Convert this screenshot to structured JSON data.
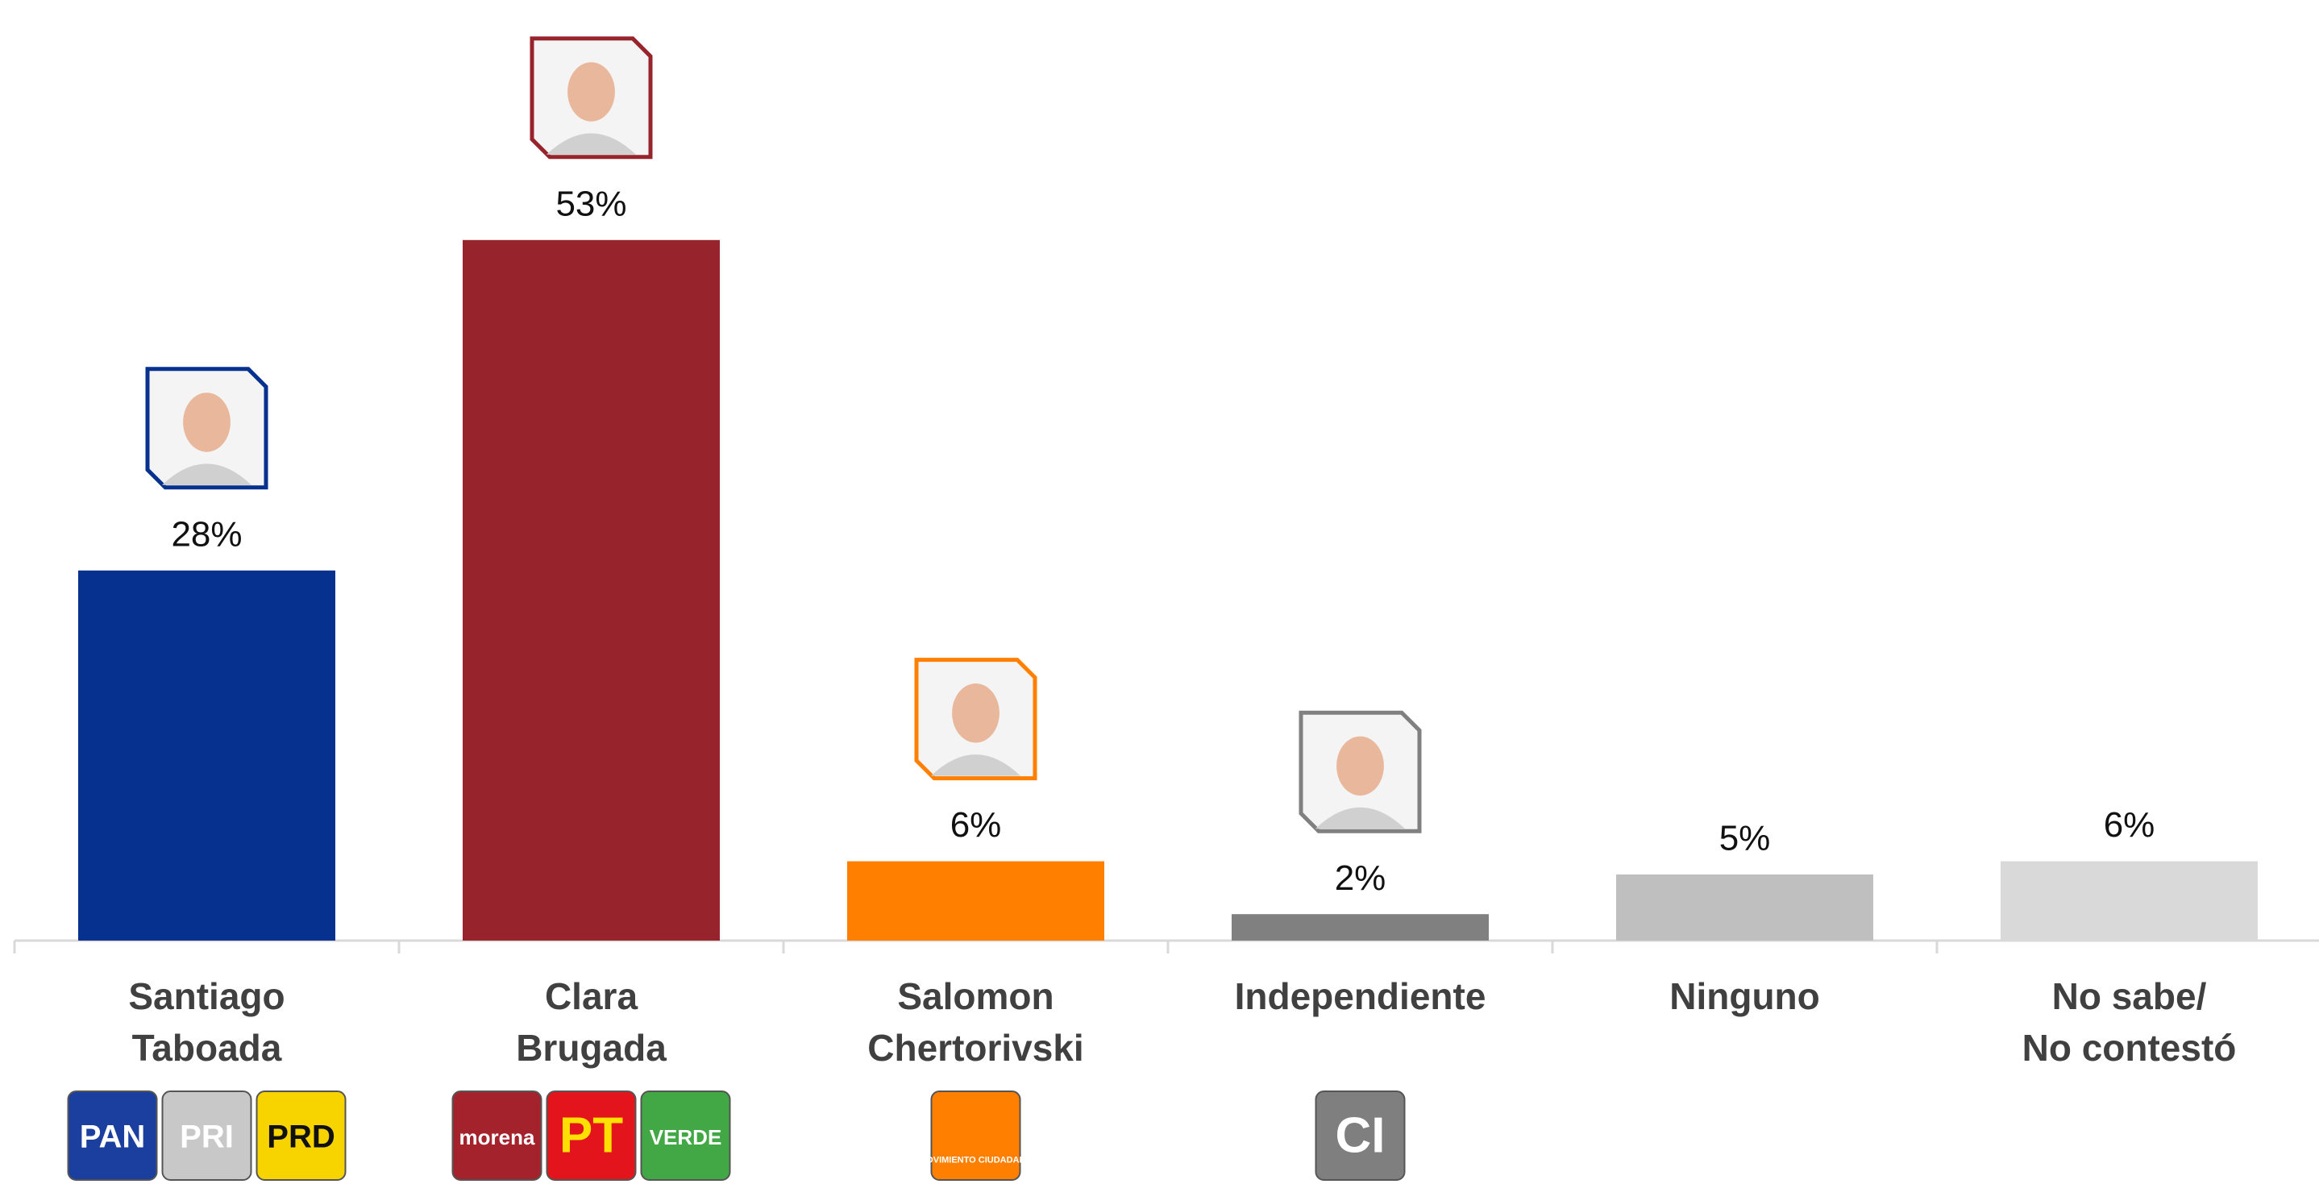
{
  "chart_data": {
    "type": "bar",
    "categories": [
      "Santiago\nTaboada",
      "Clara\nBrugada",
      "Salomon\nChertorivski",
      "Independiente",
      "Ninguno",
      "No sabe/\nNo contestó"
    ],
    "values": [
      28,
      53,
      6,
      2,
      5,
      6
    ],
    "value_labels": [
      "28%",
      "53%",
      "6%",
      "2%",
      "5%",
      "6%"
    ],
    "colors": [
      "#06318f",
      "#97242c",
      "#ff8000",
      "#808080",
      "#bfbfbf",
      "#d9d9d9"
    ],
    "logos": [
      [
        {
          "text": "PAN",
          "color": "#1b3f9e",
          "text_color": "#ffffff"
        },
        {
          "text": "PRI",
          "color": "#c8c8c8",
          "text_color": "#ffffff"
        },
        {
          "text": "PRD",
          "color": "#f7d300",
          "text_color": "#111111"
        }
      ],
      [
        {
          "text": "morena",
          "color": "#a3222b",
          "text_color": "#ffffff"
        },
        {
          "text": "PT",
          "color": "#e3141c",
          "text_color": "#ffe000"
        },
        {
          "text": "VERDE",
          "color": "#41a845",
          "text_color": "#ffffff"
        }
      ],
      [
        {
          "text": "MOVIMIENTO CIUDADANO",
          "color": "#ff8000",
          "text_color": "#ffffff"
        }
      ],
      [
        {
          "text": "CI",
          "color": "#7f7f7f",
          "text_color": "#ffffff"
        }
      ],
      [],
      []
    ]
  }
}
